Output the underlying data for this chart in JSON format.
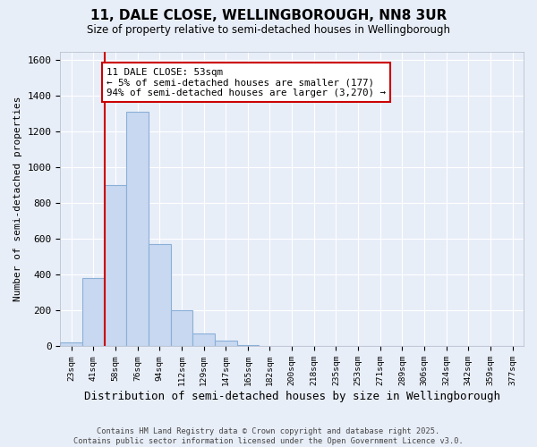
{
  "title": "11, DALE CLOSE, WELLINGBOROUGH, NN8 3UR",
  "subtitle": "Size of property relative to semi-detached houses in Wellingborough",
  "xlabel": "Distribution of semi-detached houses by size in Wellingborough",
  "ylabel": "Number of semi-detached properties",
  "categories": [
    "23sqm",
    "41sqm",
    "58sqm",
    "76sqm",
    "94sqm",
    "112sqm",
    "129sqm",
    "147sqm",
    "165sqm",
    "182sqm",
    "200sqm",
    "218sqm",
    "235sqm",
    "253sqm",
    "271sqm",
    "289sqm",
    "306sqm",
    "324sqm",
    "342sqm",
    "359sqm",
    "377sqm"
  ],
  "values": [
    20,
    380,
    900,
    1310,
    570,
    200,
    70,
    30,
    5,
    2,
    0,
    0,
    0,
    0,
    0,
    0,
    0,
    0,
    0,
    0,
    0
  ],
  "bar_color": "#c8d8f0",
  "bar_edge_color": "#8ab0d8",
  "vline_x": 1.5,
  "vline_color": "#cc0000",
  "annotation_text": "11 DALE CLOSE: 53sqm\n← 5% of semi-detached houses are smaller (177)\n94% of semi-detached houses are larger (3,270) →",
  "annotation_box_color": "#ffffff",
  "annotation_box_edgecolor": "#cc0000",
  "ylim": [
    0,
    1650
  ],
  "yticks": [
    0,
    200,
    400,
    600,
    800,
    1000,
    1200,
    1400,
    1600
  ],
  "background_color": "#e8eef8",
  "grid_color": "#ffffff",
  "footer": "Contains HM Land Registry data © Crown copyright and database right 2025.\nContains public sector information licensed under the Open Government Licence v3.0."
}
